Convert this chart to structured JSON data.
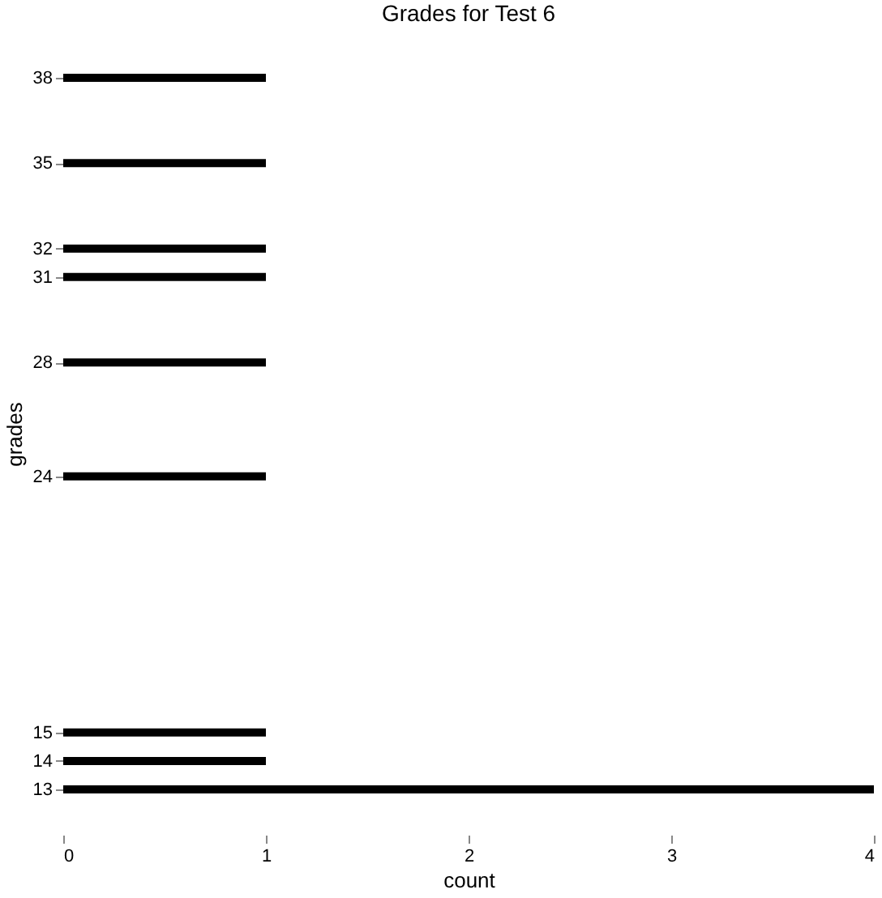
{
  "chart_data": {
    "type": "bar",
    "orientation": "horizontal",
    "title": "Grades for Test 6",
    "xlabel": "count",
    "ylabel": "grades",
    "x": [
      13,
      14,
      15,
      24,
      28,
      31,
      32,
      35,
      38
    ],
    "values": [
      4,
      1,
      1,
      1,
      1,
      1,
      1,
      1,
      1
    ],
    "color": "#000000",
    "xlim": [
      0,
      4
    ],
    "xticks": [
      0,
      1,
      2,
      3,
      4
    ],
    "ylim": [
      13,
      38
    ],
    "yticks": [
      13,
      14,
      15,
      24,
      28,
      31,
      32,
      35,
      38
    ],
    "grid": false
  }
}
